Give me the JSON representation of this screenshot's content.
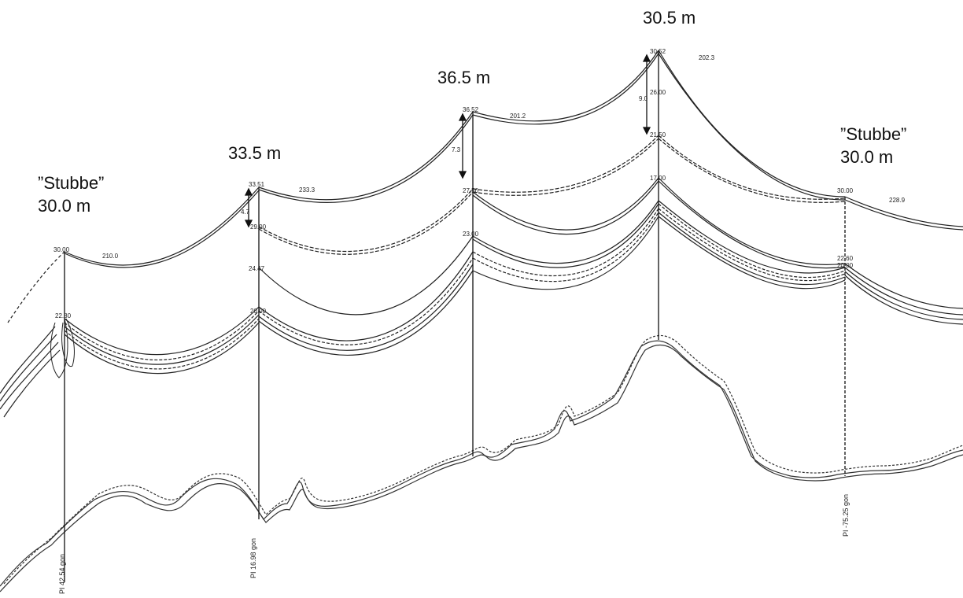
{
  "tower_labels": {
    "t1_name": "”Stubbe”",
    "t1_height": "30.0 m",
    "t2_height": "33.5 m",
    "t3_height": "36.5 m",
    "t4_height": "30.5 m",
    "t5_name": "”Stubbe”",
    "t5_height": "30.0 m"
  },
  "spans": {
    "s1": "210.0",
    "s2": "233.3",
    "s3": "201.2",
    "s4": "202.3",
    "s5": "228.9"
  },
  "attach_heights": {
    "t1_top": "30.00",
    "t1_low": "22.80",
    "t2_top": "33.51",
    "t2_mid": "29.00",
    "t2_low": "24.47",
    "t2_bot": "20.00",
    "t3_top": "36.52",
    "t3_mid": "27.50",
    "t3_low": "23.00",
    "t4_top": "30.52",
    "t4_a": "26.00",
    "t4_b": "21.50",
    "t4_c": "17.00",
    "t5_top": "30.00",
    "t5_low": "22.60",
    "t5_bot": "20.00"
  },
  "gaps": {
    "t2": "4.7",
    "t3": "7.3",
    "t4": "9.0"
  },
  "angles": {
    "t1": "PI 42.54 gon",
    "t2": "PI 16.98 gon",
    "t5": "PI -75.25 gon"
  },
  "colors": {
    "line": "#222222",
    "ground": "#333333",
    "text": "#111111"
  }
}
